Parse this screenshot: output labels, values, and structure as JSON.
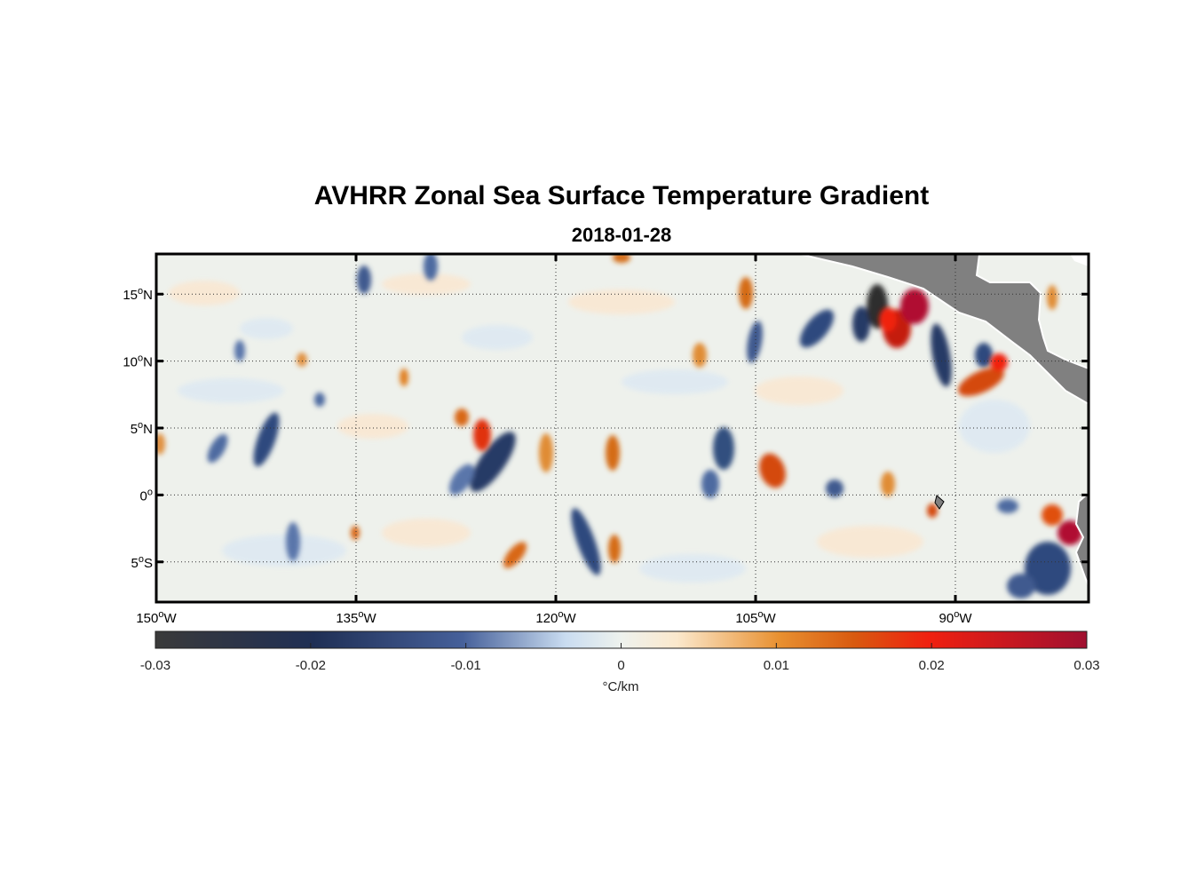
{
  "title": "AVHRR Zonal Sea Surface Temperature Gradient",
  "subtitle": "2018-01-28",
  "map": {
    "lon_range": [
      -150,
      -80
    ],
    "lat_range": [
      -8,
      18
    ],
    "lon_ticks": [
      {
        "value": -150,
        "num": "150",
        "sup": "o",
        "hemi": "W"
      },
      {
        "value": -135,
        "num": "135",
        "sup": "o",
        "hemi": "W"
      },
      {
        "value": -120,
        "num": "120",
        "sup": "o",
        "hemi": "W"
      },
      {
        "value": -105,
        "num": "105",
        "sup": "o",
        "hemi": "W"
      },
      {
        "value": -90,
        "num": "90",
        "sup": "o",
        "hemi": "W"
      }
    ],
    "lat_ticks": [
      {
        "value": 15,
        "num": "15",
        "sup": "o",
        "hemi": "N"
      },
      {
        "value": 10,
        "num": "10",
        "sup": "o",
        "hemi": "N"
      },
      {
        "value": 5,
        "num": "5",
        "sup": "o",
        "hemi": "N"
      },
      {
        "value": 0,
        "num": "0",
        "sup": "o",
        "hemi": ""
      },
      {
        "value": -5,
        "num": "5",
        "sup": "o",
        "hemi": "S"
      }
    ],
    "land_color": "#808080",
    "grid": "dotted"
  },
  "colorbar": {
    "range": [
      -0.03,
      0.03
    ],
    "tick_labels": [
      "-0.03",
      "-0.02",
      "-0.01",
      "0",
      "0.01",
      "0.02",
      "0.03"
    ],
    "tick_values": [
      -0.03,
      -0.02,
      -0.01,
      0,
      0.01,
      0.02,
      0.03
    ],
    "unit": "°C/km",
    "colors": [
      "#3a3a3a",
      "#1f2f55",
      "#3f5a8f",
      "#cfe0f0",
      "#eef2ee",
      "#fbe8cc",
      "#e89030",
      "#d85a10",
      "#f02010",
      "#b01030"
    ]
  }
}
